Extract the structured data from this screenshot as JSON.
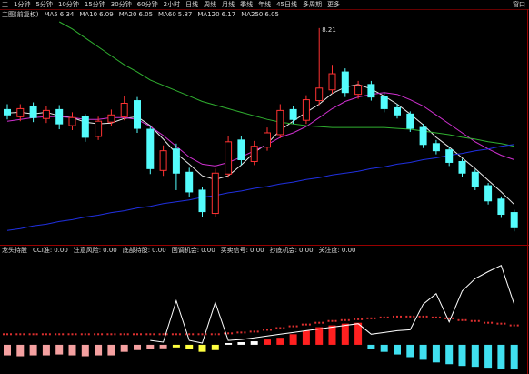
{
  "toolbar": [
    "工",
    "1分钟",
    "5分钟",
    "10分钟",
    "15分钟",
    "30分钟",
    "60分钟",
    "2小时",
    "日线",
    "周线",
    "月线",
    "季线",
    "年线",
    "45日线",
    "多周期",
    "更多"
  ],
  "window_label": "窗口",
  "chart_data": [
    {
      "type": "candlestick",
      "title": "主图(前复权)",
      "ylim": [
        5.8,
        8.3
      ],
      "up_color": "#ff3232",
      "down_color": "#54fcfc",
      "open": [
        7.3,
        7.22,
        7.33,
        7.2,
        7.3,
        7.12,
        7.22,
        7.0,
        7.16,
        7.22,
        7.4,
        7.08,
        6.62,
        6.86,
        6.6,
        6.4,
        6.14,
        6.58,
        6.96,
        6.72,
        6.88,
        7.02,
        7.3,
        7.18,
        7.4,
        7.52,
        7.72,
        7.47,
        7.58,
        7.45,
        7.32,
        7.25,
        7.1,
        6.92,
        6.85,
        6.72,
        6.6,
        6.45,
        6.3,
        6.15
      ],
      "high": [
        7.36,
        7.36,
        7.38,
        7.34,
        7.35,
        7.27,
        7.25,
        7.22,
        7.3,
        7.45,
        7.44,
        7.12,
        6.9,
        6.92,
        6.65,
        6.44,
        6.64,
        7.0,
        7.0,
        6.95,
        7.1,
        7.36,
        7.34,
        7.46,
        8.21,
        7.8,
        7.76,
        7.62,
        7.62,
        7.49,
        7.36,
        7.28,
        7.14,
        6.96,
        6.88,
        6.75,
        6.63,
        6.48,
        6.33,
        6.18
      ],
      "low": [
        7.19,
        7.17,
        7.16,
        7.15,
        7.08,
        7.07,
        6.94,
        6.96,
        7.12,
        7.18,
        7.04,
        6.58,
        6.56,
        6.4,
        6.32,
        6.1,
        6.1,
        6.54,
        6.68,
        6.68,
        6.84,
        6.98,
        7.14,
        7.14,
        7.35,
        7.48,
        7.44,
        7.42,
        7.4,
        7.27,
        7.2,
        7.05,
        6.87,
        6.8,
        6.67,
        6.55,
        6.4,
        6.24,
        6.09,
        5.94
      ],
      "close": [
        7.24,
        7.31,
        7.21,
        7.29,
        7.14,
        7.21,
        6.99,
        7.17,
        7.24,
        7.37,
        7.09,
        6.64,
        6.84,
        6.59,
        6.38,
        6.16,
        6.59,
        6.94,
        6.74,
        6.89,
        7.04,
        7.29,
        7.19,
        7.41,
        7.54,
        7.7,
        7.49,
        7.57,
        7.44,
        7.31,
        7.24,
        7.09,
        6.91,
        6.84,
        6.71,
        6.59,
        6.44,
        6.28,
        6.13,
        5.98
      ],
      "legend": [
        {
          "name": "MA5",
          "value": 6.34,
          "color": "#e8e8e8"
        },
        {
          "name": "MA10",
          "value": 6.09,
          "color": "#f0e040"
        },
        {
          "name": "MA20",
          "value": 6.05,
          "color": "#ff40ff"
        },
        {
          "name": "MA60",
          "value": 5.87,
          "color": "#30d030"
        },
        {
          "name": "MA120",
          "value": 6.17,
          "color": "#d0d0d0"
        },
        {
          "name": "MA250",
          "value": 6.05,
          "color": "#4060ff"
        }
      ],
      "series": [
        {
          "color": "#e8e8e8",
          "values": [
            7.26,
            7.27,
            7.25,
            7.27,
            7.23,
            7.21,
            7.16,
            7.14,
            7.15,
            7.2,
            7.22,
            7.12,
            6.97,
            6.81,
            6.69,
            6.56,
            6.52,
            6.56,
            6.68,
            6.82,
            6.92,
            7.07,
            7.17,
            7.27,
            7.36,
            7.48,
            7.55,
            7.58,
            7.53,
            7.45,
            7.36,
            7.25,
            7.13,
            6.99,
            6.88,
            6.76,
            6.64,
            6.51,
            6.38,
            6.24
          ]
        },
        {
          "color": "#d030d0",
          "values": [
            7.17,
            7.19,
            7.21,
            7.22,
            7.22,
            7.21,
            7.19,
            7.19,
            7.21,
            7.21,
            7.19,
            7.11,
            7.01,
            6.89,
            6.77,
            6.69,
            6.67,
            6.71,
            6.77,
            6.84,
            6.91,
            6.99,
            7.04,
            7.11,
            7.21,
            7.31,
            7.39,
            7.44,
            7.47,
            7.49,
            7.47,
            7.41,
            7.34,
            7.24,
            7.14,
            7.04,
            6.94,
            6.86,
            6.79,
            6.74
          ]
        },
        {
          "color": "#30b030",
          "values": [
            null,
            null,
            null,
            null,
            8.28,
            8.2,
            8.1,
            8.0,
            7.9,
            7.8,
            7.72,
            7.63,
            7.57,
            7.51,
            7.45,
            7.39,
            7.35,
            7.31,
            7.27,
            7.23,
            7.19,
            7.16,
            7.14,
            7.12,
            7.11,
            7.1,
            7.1,
            7.1,
            7.1,
            7.1,
            7.09,
            7.08,
            7.06,
            7.04,
            7.02,
            6.99,
            6.97,
            6.94,
            6.92,
            6.89
          ]
        },
        {
          "color": "#2030e0",
          "values": [
            5.95,
            5.97,
            6.0,
            6.02,
            6.05,
            6.07,
            6.1,
            6.12,
            6.15,
            6.17,
            6.2,
            6.22,
            6.25,
            6.27,
            6.29,
            6.32,
            6.34,
            6.37,
            6.39,
            6.42,
            6.44,
            6.47,
            6.49,
            6.52,
            6.54,
            6.57,
            6.59,
            6.61,
            6.64,
            6.66,
            6.69,
            6.71,
            6.74,
            6.76,
            6.79,
            6.81,
            6.84,
            6.86,
            6.89,
            6.91
          ]
        }
      ]
    },
    {
      "type": "indicator",
      "title": "龙头持股",
      "ylim": [
        -30,
        100
      ],
      "legend": [
        {
          "name": "CCI准:",
          "value": 0,
          "value_label": "0.00",
          "color": "#ff3030"
        },
        {
          "name": "注意风险:",
          "value": 0,
          "value_label": "0.00",
          "color": "#30e030"
        },
        {
          "name": "底部持股:",
          "value": 0,
          "value_label": "0.00",
          "color": "#ff3030"
        },
        {
          "name": "回调机会:",
          "value": 0,
          "value_label": "0.00",
          "color": "#f0e040"
        },
        {
          "name": "买卖信号:",
          "value": 0,
          "value_label": "0.00",
          "color": "#40e0f0"
        },
        {
          "name": "抄底机会:",
          "value": 0,
          "value_label": "0.00",
          "color": "#ffffff"
        },
        {
          "name": "关注度:",
          "value": 0,
          "value_label": "0.00",
          "color": "#ffffff"
        }
      ],
      "bars": [
        -12,
        -13,
        -12,
        -12,
        -11,
        -12,
        -13,
        -12,
        -12,
        -8,
        -6,
        -5,
        -4,
        -3,
        -5,
        -8,
        -6,
        2,
        3,
        4,
        6,
        8,
        12,
        16,
        20,
        22,
        24,
        25,
        -5,
        -8,
        -11,
        -14,
        -17,
        -20,
        -22,
        -24,
        -25,
        -26,
        -27,
        -28
      ],
      "bar_colors": [
        "#f4a0a0",
        "#f4a0a0",
        "#f4a0a0",
        "#f4a0a0",
        "#f4a0a0",
        "#f4a0a0",
        "#f4a0a0",
        "#f4a0a0",
        "#f4a0a0",
        "#f4a0a0",
        "#f4a0a0",
        "#f4a0a0",
        "#f4a0a0",
        "#ffff40",
        "#ffff40",
        "#ffff40",
        "#ffff40",
        "#ffffff",
        "#ffffff",
        "#ffffff",
        "#ff2020",
        "#ff2020",
        "#ff2020",
        "#ff2020",
        "#ff2020",
        "#ff2020",
        "#ff2020",
        "#ff2020",
        "#40e0f0",
        "#40e0f0",
        "#40e0f0",
        "#40e0f0",
        "#40e0f0",
        "#40e0f0",
        "#40e0f0",
        "#40e0f0",
        "#40e0f0",
        "#40e0f0",
        "#40e0f0",
        "#40e0f0"
      ],
      "line": {
        "color": "#ffffff",
        "values": [
          null,
          null,
          null,
          null,
          null,
          null,
          null,
          null,
          null,
          null,
          null,
          5,
          3,
          50,
          5,
          2,
          48,
          5,
          6,
          8,
          10,
          12,
          14,
          16,
          18,
          20,
          22,
          24,
          12,
          14,
          16,
          17,
          46,
          58,
          26,
          61,
          75,
          83,
          90,
          46
        ]
      },
      "dots": {
        "color": "#e03030",
        "values": [
          12,
          12,
          12,
          12,
          12,
          12,
          12,
          12,
          12,
          12,
          12,
          12,
          12,
          12,
          12,
          12,
          12,
          13,
          14,
          15,
          17,
          19,
          21,
          23,
          25,
          27,
          28,
          29,
          30,
          31,
          32,
          32,
          32,
          31,
          30,
          28,
          27,
          25,
          24,
          22
        ]
      }
    }
  ]
}
